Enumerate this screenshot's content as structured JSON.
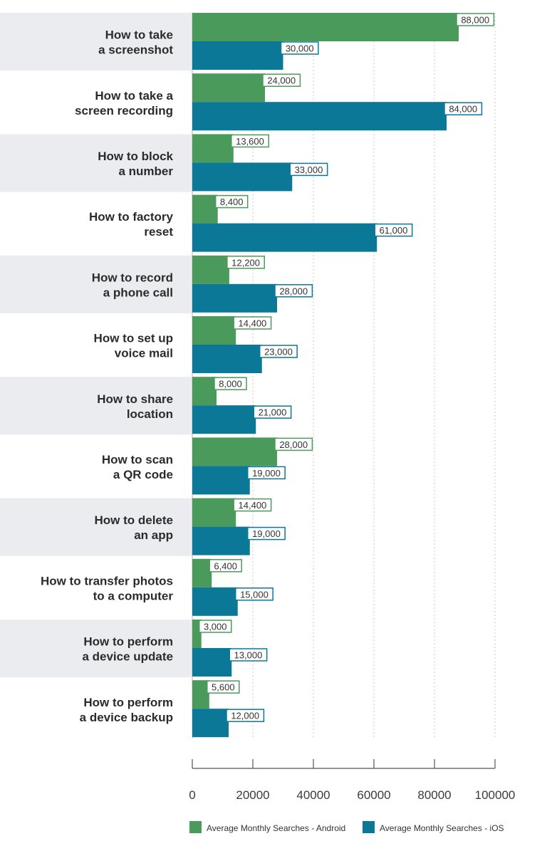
{
  "chart_data": {
    "type": "bar",
    "orientation": "horizontal",
    "categories": [
      [
        "How to take",
        "a screenshot"
      ],
      [
        "How to take a",
        "screen recording"
      ],
      [
        "How to block",
        "a number"
      ],
      [
        "How to factory",
        "reset"
      ],
      [
        "How to record",
        "a phone call"
      ],
      [
        "How to set up",
        "voice mail"
      ],
      [
        "How to share",
        "location"
      ],
      [
        "How to scan",
        "a QR code"
      ],
      [
        "How to delete",
        "an app"
      ],
      [
        "How to transfer photos",
        "to a computer"
      ],
      [
        "How to perform",
        "a device update"
      ],
      [
        "How to perform",
        "a device backup"
      ]
    ],
    "series": [
      {
        "name": "Average Monthly Searches - Android",
        "color": "#4a9b5b",
        "values": [
          88000,
          24000,
          13600,
          8400,
          12200,
          14400,
          8000,
          28000,
          14400,
          6400,
          3000,
          5600
        ],
        "labels": [
          "88,000",
          "24,000",
          "13,600",
          "8,400",
          "12,200",
          "14,400",
          "8,000",
          "28,000",
          "14,400",
          "6,400",
          "3,000",
          "5,600"
        ]
      },
      {
        "name": "Average Monthly Searches - iOS",
        "color": "#0a7896",
        "values": [
          30000,
          84000,
          33000,
          61000,
          28000,
          23000,
          21000,
          19000,
          19000,
          15000,
          13000,
          12000
        ],
        "labels": [
          "30,000",
          "84,000",
          "33,000",
          "61,000",
          "28,000",
          "23,000",
          "21,000",
          "19,000",
          "19,000",
          "15,000",
          "13,000",
          "12,000"
        ]
      }
    ],
    "xlim": [
      0,
      100000
    ],
    "xticks": [
      0,
      20000,
      40000,
      60000,
      80000,
      100000
    ],
    "xtick_labels": [
      "0",
      "20000",
      "40000",
      "60000",
      "80000",
      "100000"
    ],
    "grid": true,
    "legend_position": "bottom",
    "band_color": "#ebecf0"
  }
}
